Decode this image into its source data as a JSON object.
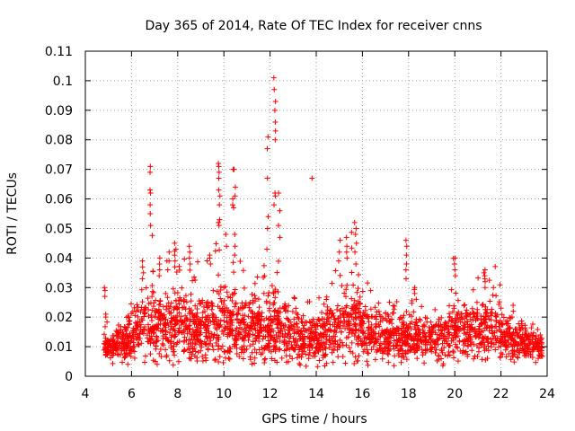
{
  "chart_data": {
    "type": "scatter",
    "title": "Day 365 of 2014, Rate Of TEC Index for receiver cnns",
    "xlabel": "GPS time / hours",
    "ylabel": "ROTI / TECUs",
    "xlim": [
      4,
      24
    ],
    "ylim": [
      0,
      0.11
    ],
    "x_ticks": [
      "4",
      "6",
      "8",
      "10",
      "12",
      "14",
      "16",
      "18",
      "20",
      "22",
      "24"
    ],
    "y_ticks": [
      "0",
      "0.01",
      "0.02",
      "0.03",
      "0.04",
      "0.05",
      "0.06",
      "0.07",
      "0.08",
      "0.09",
      "0.1",
      "0.11"
    ],
    "grid": true,
    "marker": "+",
    "color": "#ff0000",
    "envelope": [
      {
        "x": 4.8,
        "base": 0.011,
        "spread": 0.008
      },
      {
        "x": 5.0,
        "base": 0.01,
        "spread": 0.007
      },
      {
        "x": 5.5,
        "base": 0.011,
        "spread": 0.008
      },
      {
        "x": 6.0,
        "base": 0.013,
        "spread": 0.013
      },
      {
        "x": 6.5,
        "base": 0.017,
        "spread": 0.016
      },
      {
        "x": 7.0,
        "base": 0.018,
        "spread": 0.018
      },
      {
        "x": 7.5,
        "base": 0.017,
        "spread": 0.017
      },
      {
        "x": 8.0,
        "base": 0.017,
        "spread": 0.018
      },
      {
        "x": 8.5,
        "base": 0.016,
        "spread": 0.017
      },
      {
        "x": 9.0,
        "base": 0.016,
        "spread": 0.016
      },
      {
        "x": 9.5,
        "base": 0.017,
        "spread": 0.019
      },
      {
        "x": 10.0,
        "base": 0.017,
        "spread": 0.018
      },
      {
        "x": 10.5,
        "base": 0.017,
        "spread": 0.017
      },
      {
        "x": 11.0,
        "base": 0.016,
        "spread": 0.015
      },
      {
        "x": 11.5,
        "base": 0.016,
        "spread": 0.015
      },
      {
        "x": 12.0,
        "base": 0.016,
        "spread": 0.016
      },
      {
        "x": 12.5,
        "base": 0.016,
        "spread": 0.016
      },
      {
        "x": 13.0,
        "base": 0.014,
        "spread": 0.014
      },
      {
        "x": 13.5,
        "base": 0.012,
        "spread": 0.01
      },
      {
        "x": 14.0,
        "base": 0.012,
        "spread": 0.01
      },
      {
        "x": 14.5,
        "base": 0.014,
        "spread": 0.013
      },
      {
        "x": 15.0,
        "base": 0.017,
        "spread": 0.017
      },
      {
        "x": 15.5,
        "base": 0.018,
        "spread": 0.019
      },
      {
        "x": 16.0,
        "base": 0.016,
        "spread": 0.016
      },
      {
        "x": 16.5,
        "base": 0.014,
        "spread": 0.012
      },
      {
        "x": 17.0,
        "base": 0.013,
        "spread": 0.011
      },
      {
        "x": 17.5,
        "base": 0.013,
        "spread": 0.011
      },
      {
        "x": 18.0,
        "base": 0.014,
        "spread": 0.013
      },
      {
        "x": 18.5,
        "base": 0.013,
        "spread": 0.011
      },
      {
        "x": 19.0,
        "base": 0.012,
        "spread": 0.01
      },
      {
        "x": 19.5,
        "base": 0.013,
        "spread": 0.012
      },
      {
        "x": 20.0,
        "base": 0.015,
        "spread": 0.014
      },
      {
        "x": 20.5,
        "base": 0.015,
        "spread": 0.014
      },
      {
        "x": 21.0,
        "base": 0.016,
        "spread": 0.015
      },
      {
        "x": 21.5,
        "base": 0.016,
        "spread": 0.015
      },
      {
        "x": 22.0,
        "base": 0.014,
        "spread": 0.012
      },
      {
        "x": 22.5,
        "base": 0.012,
        "spread": 0.01
      },
      {
        "x": 23.0,
        "base": 0.011,
        "spread": 0.008
      },
      {
        "x": 23.5,
        "base": 0.01,
        "spread": 0.007
      },
      {
        "x": 23.8,
        "base": 0.009,
        "spread": 0.006
      }
    ],
    "bursts": [
      {
        "x": 4.85,
        "values": [
          0.03,
          0.029,
          0.027,
          0.021,
          0.02
        ]
      },
      {
        "x": 6.5,
        "values": [
          0.039,
          0.037,
          0.035,
          0.033
        ]
      },
      {
        "x": 6.8,
        "values": [
          0.071,
          0.069,
          0.063,
          0.062,
          0.058,
          0.055,
          0.051
        ]
      },
      {
        "x": 7.2,
        "values": [
          0.04,
          0.038,
          0.036,
          0.034
        ]
      },
      {
        "x": 7.6,
        "values": [
          0.042,
          0.039,
          0.036
        ]
      },
      {
        "x": 7.9,
        "values": [
          0.045,
          0.043,
          0.041,
          0.039,
          0.037
        ]
      },
      {
        "x": 8.5,
        "values": [
          0.044,
          0.042,
          0.04,
          0.038
        ]
      },
      {
        "x": 9.4,
        "values": [
          0.041,
          0.04,
          0.038
        ]
      },
      {
        "x": 9.8,
        "values": [
          0.072,
          0.071,
          0.069,
          0.067,
          0.063,
          0.061,
          0.058,
          0.053,
          0.052,
          0.051
        ]
      },
      {
        "x": 10.1,
        "values": [
          0.048,
          0.044
        ]
      },
      {
        "x": 10.4,
        "values": [
          0.07,
          0.07,
          0.06,
          0.058,
          0.057
        ]
      },
      {
        "x": 10.5,
        "values": [
          0.064,
          0.061,
          0.048,
          0.044,
          0.041
        ]
      },
      {
        "x": 11.9,
        "values": [
          0.081,
          0.077,
          0.067,
          0.054,
          0.05,
          0.043
        ]
      },
      {
        "x": 12.2,
        "values": [
          0.101,
          0.097,
          0.093,
          0.09,
          0.086,
          0.083,
          0.08,
          0.062,
          0.061,
          0.058
        ]
      },
      {
        "x": 12.4,
        "values": [
          0.062,
          0.056,
          0.051,
          0.047
        ]
      },
      {
        "x": 13.8,
        "values": [
          0.067
        ]
      },
      {
        "x": 15.0,
        "values": [
          0.046,
          0.042,
          0.039
        ]
      },
      {
        "x": 15.3,
        "values": [
          0.047,
          0.044,
          0.042,
          0.04
        ]
      },
      {
        "x": 15.7,
        "values": [
          0.052,
          0.05,
          0.048,
          0.045,
          0.042,
          0.038
        ]
      },
      {
        "x": 17.9,
        "values": [
          0.046,
          0.044,
          0.041,
          0.038,
          0.036,
          0.033
        ]
      },
      {
        "x": 18.3,
        "values": [
          0.03,
          0.028,
          0.026
        ]
      },
      {
        "x": 20.0,
        "values": [
          0.04,
          0.038,
          0.036,
          0.034
        ]
      },
      {
        "x": 21.3,
        "values": [
          0.036,
          0.035,
          0.034,
          0.033,
          0.032,
          0.03
        ]
      },
      {
        "x": 22.5,
        "values": [
          0.024,
          0.022,
          0.02
        ]
      }
    ]
  }
}
